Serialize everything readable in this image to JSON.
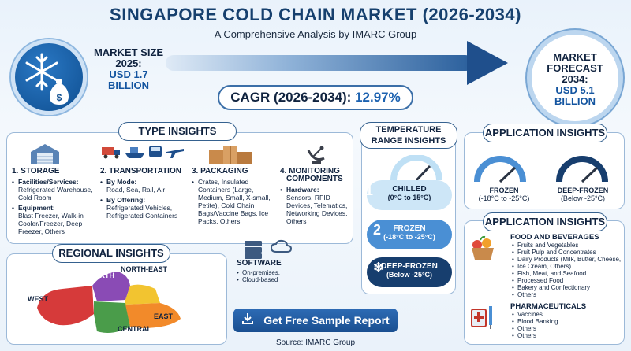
{
  "header": {
    "title": "SINGAPORE COLD CHAIN MARKET (2026-2034)",
    "subtitle": "A Comprehensive Analysis by IMARC Group"
  },
  "market_size": {
    "label_line1": "MARKET SIZE",
    "label_line2": "2025:",
    "value_line1": "USD 1.7",
    "value_line2": "BILLION"
  },
  "forecast": {
    "label_line1": "MARKET",
    "label_line2": "FORECAST",
    "label_line3": "2034:",
    "value_line1": "USD 5.1",
    "value_line2": "BILLION"
  },
  "cagr": {
    "label": "CAGR (2026-2034):",
    "value": "12.97%"
  },
  "type_insights": {
    "title": "TYPE INSIGHTS",
    "storage": {
      "heading": "1. STORAGE",
      "facilities_label": "Facilities/Services:",
      "facilities_value": "Refrigerated Warehouse, Cold Room",
      "equipment_label": "Equipment:",
      "equipment_value": "Blast Freezer, Walk-in Cooler/Freezer, Deep Freezer, Others"
    },
    "transportation": {
      "heading": "2. TRANSPORTATION",
      "mode_label": "By Mode:",
      "mode_value": "Road, Sea, Rail, Air",
      "offering_label": "By Offering:",
      "offering_value": "Refrigerated Vehicles, Refrigerated Containers"
    },
    "packaging": {
      "heading": "3. PACKAGING",
      "value": "Crates, Insulated Containers (Large, Medium, Small, X-small, Petite), Cold Chain Bags/Vaccine Bags, Ice Packs, Others"
    },
    "monitoring": {
      "heading_line1": "4. MONITORING",
      "heading_line2": "COMPONENTS",
      "hardware_label": "Hardware:",
      "hardware_value": "Sensors, RFID Devices, Telematics, Networking Devices, Others"
    },
    "software": {
      "heading": "SOFTWARE",
      "items": [
        "On-premises,",
        "Cloud-based"
      ]
    }
  },
  "regional": {
    "title": "REGIONAL INSIGHTS",
    "regions": [
      "NORTH",
      "NORTH-EAST",
      "WEST",
      "EAST",
      "CENTRAL"
    ]
  },
  "temperature": {
    "title_line1": "TEMPERATURE",
    "title_line2": "RANGE INSIGHTS",
    "items": [
      {
        "num": "1",
        "name": "CHILLED",
        "range": "(0°C to 15°C)"
      },
      {
        "num": "2",
        "name": "FROZEN",
        "range": "(-18°C to -25°C)"
      },
      {
        "name": "DEEP-FROZEN",
        "range": "(Below -25°C)"
      }
    ]
  },
  "application_top": {
    "title": "APPLICATION INSIGHTS",
    "gauges": [
      {
        "name": "FROZEN",
        "range": "(-18°C to -25°C)"
      },
      {
        "name": "DEEP-FROZEN",
        "range": "(Below -25°C)"
      }
    ]
  },
  "application_bottom": {
    "title": "APPLICATION INSIGHTS",
    "food_heading": "FOOD AND BEVERAGES",
    "food_items": [
      "Fruits and Vegetables",
      "Fruit Pulp and Concentrates",
      "Dairy Products (Milk, Butter, Cheese,",
      "Ice Cream, Others)",
      "Fish, Meat, and Seafood",
      "Processed Food",
      "Bakery and Confectionary",
      "Others"
    ],
    "pharma_heading": "PHARMACEUTICALS",
    "pharma_items": [
      "Vaccines",
      "Blood Banking",
      "Others",
      "Others"
    ]
  },
  "cta": {
    "label": "Get Free Sample Report"
  },
  "source": "Source: IMARC Group",
  "colors": {
    "primary": "#16406e",
    "accent": "#1c62b0",
    "chilled": "#bfe0f5",
    "frozen": "#4a8fd4",
    "deep_frozen": "#173e6e"
  }
}
